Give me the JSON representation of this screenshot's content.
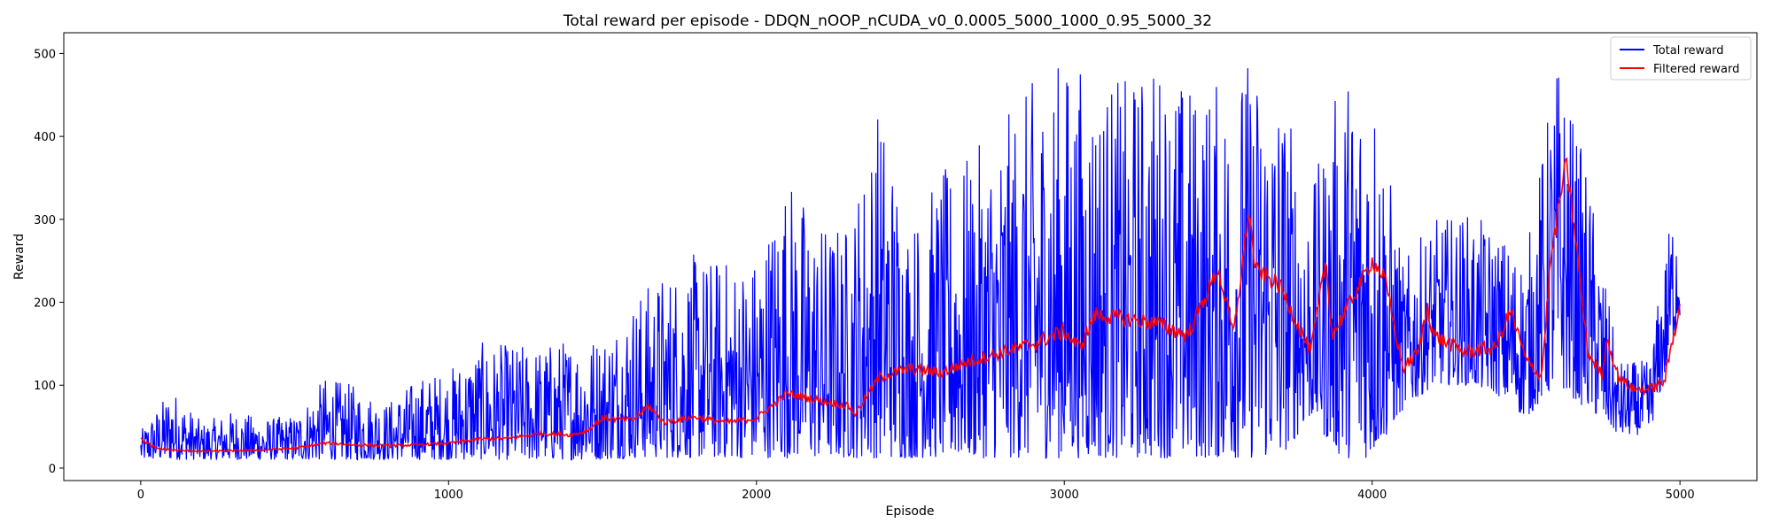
{
  "chart_data": {
    "type": "line",
    "title": "Total reward per episode - DDQN_nOOP_nCUDA_v0_0.0005_5000_1000_0.95_5000_32",
    "xlabel": "Episode",
    "ylabel": "Reward",
    "xlim": [
      -250,
      5250
    ],
    "ylim": [
      -15,
      525
    ],
    "xticks": [
      0,
      1000,
      2000,
      3000,
      4000,
      5000
    ],
    "yticks": [
      0,
      100,
      200,
      300,
      400,
      500
    ],
    "grid": false,
    "legend_position": "top-right",
    "series": [
      {
        "name": "Total reward",
        "color": "#0000ff",
        "description": "Raw per-episode total reward (5000 episodes), noisy; low (~10-60) early, spiking to 500 after ~2900",
        "x": [
          0,
          100,
          200,
          300,
          400,
          500,
          600,
          700,
          800,
          900,
          1000,
          1100,
          1200,
          1300,
          1400,
          1500,
          1600,
          1700,
          1800,
          1900,
          2000,
          2100,
          2200,
          2300,
          2400,
          2500,
          2600,
          2700,
          2800,
          2900,
          3000,
          3100,
          3200,
          3300,
          3400,
          3500,
          3600,
          3700,
          3800,
          3900,
          4000,
          4100,
          4200,
          4300,
          4400,
          4500,
          4600,
          4700,
          4800,
          4900,
          5000
        ],
        "min": [
          10,
          10,
          10,
          10,
          10,
          10,
          10,
          10,
          10,
          10,
          10,
          10,
          10,
          10,
          10,
          10,
          12,
          12,
          12,
          12,
          12,
          12,
          12,
          12,
          12,
          12,
          12,
          12,
          12,
          12,
          12,
          12,
          12,
          12,
          12,
          12,
          12,
          12,
          60,
          12,
          12,
          70,
          100,
          100,
          90,
          60,
          100,
          70,
          40,
          40,
          180
        ],
        "max": [
          45,
          98,
          55,
          70,
          60,
          65,
          110,
          100,
          80,
          110,
          120,
          152,
          150,
          150,
          160,
          165,
          210,
          240,
          260,
          255,
          260,
          362,
          300,
          300,
          450,
          300,
          360,
          380,
          420,
          470,
          500,
          480,
          470,
          500,
          470,
          470,
          500,
          480,
          330,
          480,
          500,
          250,
          300,
          310,
          290,
          260,
          500,
          360,
          130,
          130,
          380
        ]
      },
      {
        "name": "Filtered reward",
        "color": "#ff0000",
        "description": "Smoothed reward",
        "x": [
          0,
          50,
          100,
          200,
          300,
          400,
          500,
          600,
          700,
          800,
          900,
          1000,
          1100,
          1200,
          1300,
          1400,
          1450,
          1500,
          1600,
          1650,
          1700,
          1800,
          1900,
          2000,
          2100,
          2200,
          2300,
          2320,
          2400,
          2500,
          2600,
          2700,
          2800,
          2900,
          3000,
          3050,
          3100,
          3200,
          3300,
          3400,
          3500,
          3550,
          3600,
          3620,
          3700,
          3800,
          3850,
          3870,
          3900,
          4000,
          4040,
          4100,
          4150,
          4180,
          4200,
          4300,
          4400,
          4450,
          4500,
          4550,
          4580,
          4600,
          4630,
          4660,
          4700,
          4750,
          4760,
          4800,
          4850,
          4900,
          4950,
          5000
        ],
        "y": [
          35,
          24,
          22,
          20,
          21,
          22,
          24,
          30,
          28,
          27,
          28,
          30,
          35,
          36,
          42,
          40,
          45,
          60,
          58,
          75,
          55,
          62,
          55,
          60,
          90,
          82,
          75,
          65,
          110,
          120,
          115,
          130,
          140,
          150,
          165,
          145,
          185,
          180,
          175,
          160,
          240,
          160,
          310,
          240,
          220,
          140,
          250,
          160,
          180,
          250,
          230,
          120,
          140,
          195,
          160,
          140,
          145,
          190,
          130,
          110,
          250,
          300,
          370,
          280,
          140,
          110,
          160,
          110,
          95,
          95,
          105,
          200
        ]
      }
    ]
  }
}
